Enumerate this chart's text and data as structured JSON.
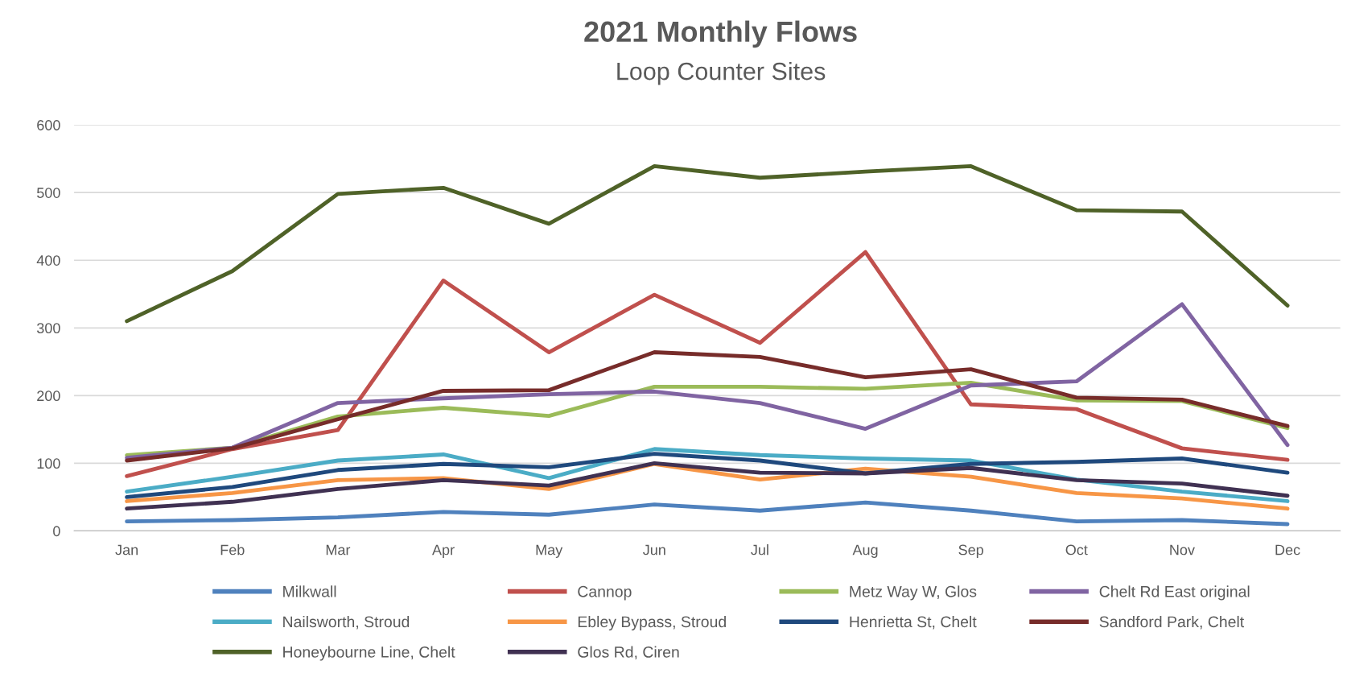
{
  "chart_data": {
    "type": "line",
    "title": "2021 Monthly Flows",
    "subtitle": "Loop Counter Sites",
    "categories": [
      "Jan",
      "Feb",
      "Mar",
      "Apr",
      "May",
      "Jun",
      "Jul",
      "Aug",
      "Sep",
      "Oct",
      "Nov",
      "Dec"
    ],
    "series": [
      {
        "name": "Milkwall",
        "color": "#4f81bd",
        "values": [
          14,
          16,
          20,
          28,
          24,
          39,
          30,
          42,
          30,
          14,
          16,
          10
        ]
      },
      {
        "name": "Cannop",
        "color": "#c0504d",
        "values": [
          81,
          121,
          149,
          370,
          264,
          349,
          278,
          412,
          187,
          180,
          122,
          105
        ]
      },
      {
        "name": "Metz Way W, Glos",
        "color": "#9bbb59",
        "values": [
          112,
          123,
          169,
          182,
          170,
          213,
          213,
          210,
          219,
          193,
          192,
          152
        ]
      },
      {
        "name": "Chelt Rd East original",
        "color": "#8064a2",
        "values": [
          108,
          123,
          189,
          196,
          202,
          206,
          189,
          151,
          215,
          221,
          335,
          127
        ]
      },
      {
        "name": "Nailsworth, Stroud",
        "color": "#4bacc6",
        "values": [
          58,
          80,
          104,
          113,
          78,
          121,
          112,
          107,
          104,
          76,
          58,
          44
        ]
      },
      {
        "name": "Ebley Bypass, Stroud",
        "color": "#f79646",
        "values": [
          44,
          56,
          75,
          78,
          62,
          99,
          76,
          92,
          80,
          56,
          48,
          33
        ]
      },
      {
        "name": "Henrietta St, Chelt",
        "color": "#1f497d",
        "values": [
          50,
          65,
          90,
          99,
          94,
          114,
          104,
          85,
          99,
          102,
          107,
          86
        ]
      },
      {
        "name": "Sandford Park, Chelt",
        "color": "#772c2a",
        "values": [
          104,
          122,
          165,
          207,
          208,
          264,
          257,
          227,
          239,
          197,
          194,
          155
        ]
      },
      {
        "name": "Honeybourne Line, Chelt",
        "color": "#4f6228",
        "values": [
          310,
          384,
          498,
          507,
          454,
          539,
          522,
          531,
          539,
          474,
          472,
          333
        ]
      },
      {
        "name": "Glos Rd, Ciren",
        "color": "#403152",
        "values": [
          33,
          43,
          62,
          75,
          67,
          100,
          86,
          85,
          93,
          75,
          70,
          52
        ]
      }
    ],
    "ylim": [
      0,
      600
    ],
    "yticks": [
      0,
      100,
      200,
      300,
      400,
      500,
      600
    ],
    "grid": "y",
    "legend": "bottom"
  }
}
